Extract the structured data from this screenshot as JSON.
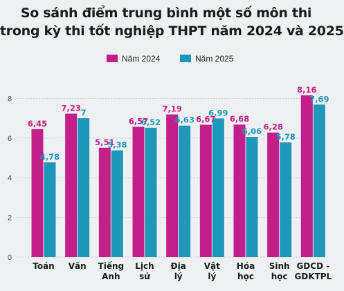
{
  "chart_data": {
    "type": "bar",
    "title_lines": [
      "So sánh điểm trung bình một số môn thi",
      "trong kỳ thi tốt nghiệp THPT năm 2024 và 2025"
    ],
    "categories": [
      [
        "Toán"
      ],
      [
        "Văn"
      ],
      [
        "Tiếng",
        "Anh"
      ],
      [
        "Lịch",
        "sử"
      ],
      [
        "Địa",
        "lý"
      ],
      [
        "Vật",
        "lý"
      ],
      [
        "Hóa",
        "học"
      ],
      [
        "Sinh",
        "học"
      ],
      [
        "GDCD -",
        "GDKTPL"
      ]
    ],
    "series": [
      {
        "name": "Năm 2024",
        "color": "#c21f8a",
        "values": [
          6.45,
          7.23,
          5.51,
          6.57,
          7.19,
          6.67,
          6.68,
          6.28,
          8.16
        ],
        "labels": [
          "6,45",
          "7,23",
          "5,51",
          "6,57",
          "7,19",
          "6,67",
          "6,68",
          "6,28",
          "8,16"
        ]
      },
      {
        "name": "Năm 2025",
        "color": "#1e97b8",
        "values": [
          4.78,
          7,
          5.38,
          6.52,
          6.63,
          6.99,
          6.06,
          5.78,
          7.69
        ],
        "labels": [
          "4,78",
          "7",
          "5,38",
          "6,52",
          "6,63",
          "6,99",
          "6,06",
          "5,78",
          "7,69"
        ]
      }
    ],
    "yticks": [
      0,
      2,
      4,
      6,
      8
    ],
    "ylim": [
      0,
      8.5
    ],
    "grid": true,
    "legend_position": "top-center"
  }
}
